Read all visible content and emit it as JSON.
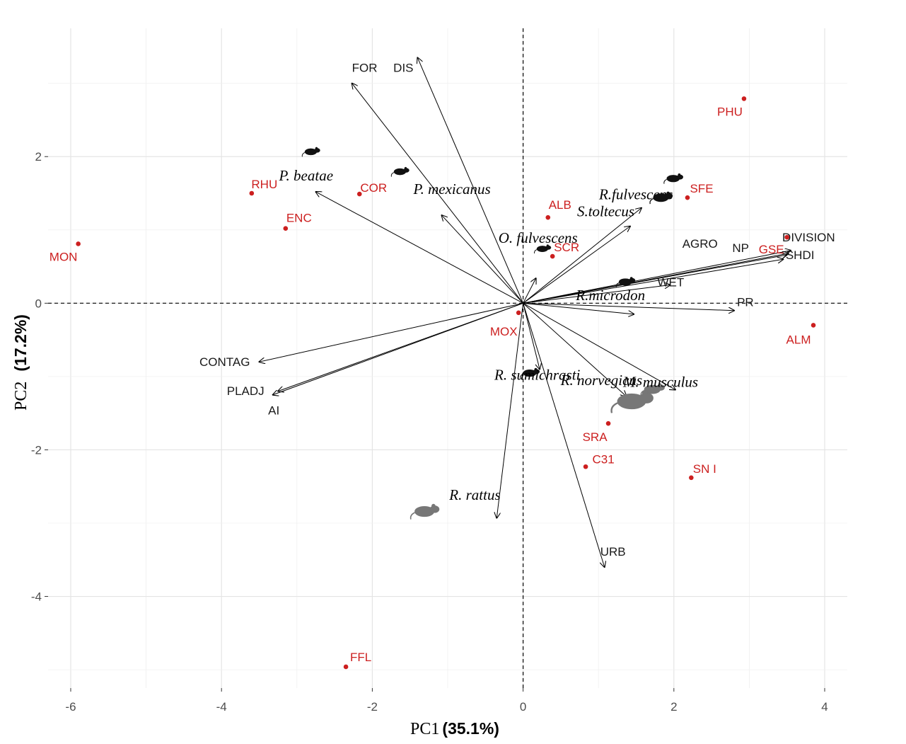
{
  "chart_data": {
    "type": "scatter",
    "subtype": "pca-biplot",
    "xlabel_prefix": "PC1",
    "xlabel_value": "(35.1%)",
    "ylabel_prefix": "PC2",
    "ylabel_value": "(17.2%)",
    "xlim": [
      -6.3,
      4.3
    ],
    "ylim": [
      -5.25,
      3.75
    ],
    "xticks": [
      -6,
      -4,
      -2,
      0,
      2,
      4
    ],
    "yticks": [
      -4,
      -2,
      0,
      2
    ],
    "grid": true,
    "zero_lines": "dashed",
    "sites": [
      {
        "label": "PHU",
        "x": 2.93,
        "y": 2.79
      },
      {
        "label": "SFE",
        "x": 2.18,
        "y": 1.44
      },
      {
        "label": "RHU",
        "x": -3.6,
        "y": 1.5
      },
      {
        "label": "COR",
        "x": -2.17,
        "y": 1.49
      },
      {
        "label": "ENC",
        "x": -3.15,
        "y": 1.02
      },
      {
        "label": "ALB",
        "x": 0.33,
        "y": 1.17
      },
      {
        "label": "MON",
        "x": -5.9,
        "y": 0.81
      },
      {
        "label": "SCR",
        "x": 0.39,
        "y": 0.64
      },
      {
        "label": "GSE",
        "x": 3.5,
        "y": 0.9
      },
      {
        "label": "MOX",
        "x": -0.06,
        "y": -0.13
      },
      {
        "label": "ALM",
        "x": 3.85,
        "y": -0.3
      },
      {
        "label": "SRA",
        "x": 1.13,
        "y": -1.64
      },
      {
        "label": "C31",
        "x": 0.83,
        "y": -2.23
      },
      {
        "label": "SN I",
        "x": 2.23,
        "y": -2.38
      },
      {
        "label": "FFL",
        "x": -2.35,
        "y": -4.96
      }
    ],
    "variables": [
      {
        "label": "FOR",
        "x": -2.27,
        "y": 3.0
      },
      {
        "label": "DIS",
        "x": -1.4,
        "y": 3.35
      },
      {
        "label": "DIVISION",
        "x": 3.55,
        "y": 0.72
      },
      {
        "label": "AGRO",
        "x": 3.5,
        "y": 0.66
      },
      {
        "label": "NP",
        "x": 3.45,
        "y": 0.6
      },
      {
        "label": "SHDI",
        "x": 3.52,
        "y": 0.68
      },
      {
        "label": "WET",
        "x": 1.95,
        "y": 0.25
      },
      {
        "label": "PR",
        "x": 2.8,
        "y": -0.1
      },
      {
        "label": "CONTAG",
        "x": -3.5,
        "y": -0.8
      },
      {
        "label": "PLADJ",
        "x": -3.32,
        "y": -1.25
      },
      {
        "label": "AI",
        "x": -3.25,
        "y": -1.2
      },
      {
        "label": "URB",
        "x": 1.08,
        "y": -3.6
      }
    ],
    "species": [
      {
        "label": "P. beatae",
        "x": -2.75,
        "y": 1.52
      },
      {
        "label": "P. mexicanus",
        "x": -1.08,
        "y": 1.2
      },
      {
        "label": "R.fulvescens",
        "x": 1.57,
        "y": 1.3
      },
      {
        "label": "S.toltecus",
        "x": 1.42,
        "y": 1.05
      },
      {
        "label": "O. fulvescens",
        "x": 0.17,
        "y": 0.34
      },
      {
        "label": "R.microdon",
        "x": 1.47,
        "y": -0.15
      },
      {
        "label": "R. sumichrasti",
        "x": 0.22,
        "y": -0.9
      },
      {
        "label": "M. musculus",
        "x": 2.02,
        "y": -1.18
      },
      {
        "label": "R. norvegicus",
        "x": 1.37,
        "y": -1.27
      },
      {
        "label": "R. rattus",
        "x": -0.35,
        "y": -2.93
      }
    ]
  }
}
